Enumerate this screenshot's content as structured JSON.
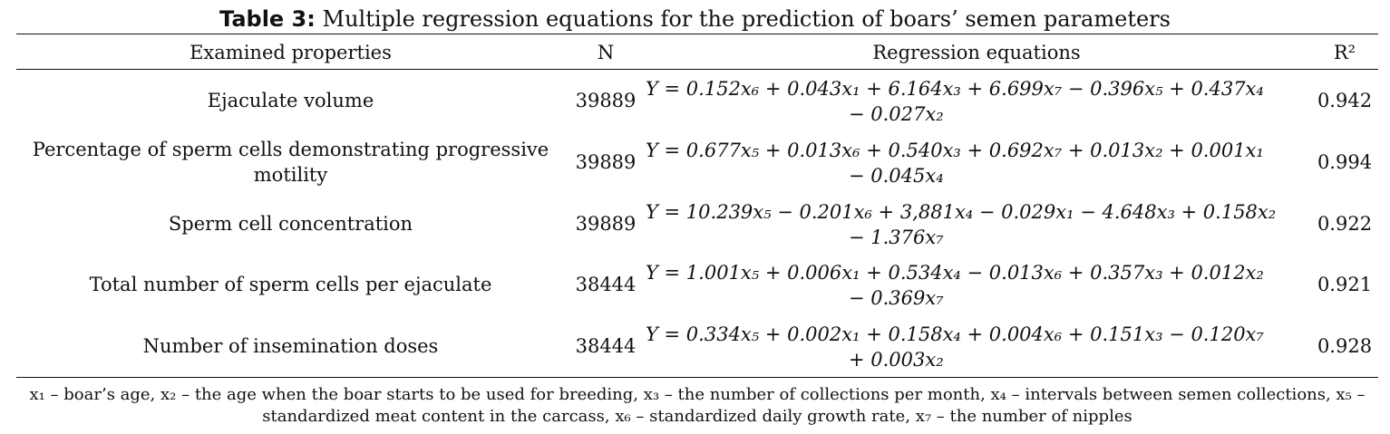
{
  "table": {
    "title_bold": "Table 3:",
    "title_rest": "Multiple regression equations for the prediction of boars’ semen parameters",
    "headers": {
      "property": "Examined properties",
      "n": "N",
      "equation": "Regression equations",
      "r2": "R²"
    },
    "rows": [
      {
        "property": "Ejaculate volume",
        "n": "39889",
        "eq_line1": "Y = 0.152x₆ + 0.043x₁ + 6.164x₃ + 6.699x₇ − 0.396x₅ + 0.437x₄",
        "eq_line2": "− 0.027x₂",
        "r2": "0.942"
      },
      {
        "property": "Percentage of sperm cells demonstrating progressive motility",
        "n": "39889",
        "eq_line1": "Y =  0.677x₅ + 0.013x₆ + 0.540x₃ + 0.692x₇ + 0.013x₂ + 0.001x₁",
        "eq_line2": "− 0.045x₄",
        "r2": "0.994"
      },
      {
        "property": "Sperm cell concentration",
        "n": "39889",
        "eq_line1": "Y = 10.239x₅ − 0.201x₆ + 3,881x₄ − 0.029x₁ − 4.648x₃ + 0.158x₂",
        "eq_line2": "− 1.376x₇",
        "r2": "0.922"
      },
      {
        "property": "Total number of sperm cells per ejaculate",
        "n": "38444",
        "eq_line1": "Y = 1.001x₅ + 0.006x₁ + 0.534x₄ − 0.013x₆ + 0.357x₃ + 0.012x₂",
        "eq_line2": "− 0.369x₇",
        "r2": "0.921"
      },
      {
        "property": "Number of insemination doses",
        "n": "38444",
        "eq_line1": "Y = 0.334x₅ + 0.002x₁ + 0.158x₄ + 0.004x₆ + 0.151x₃ − 0.120x₇",
        "eq_line2": "+ 0.003x₂",
        "r2": "0.928"
      }
    ],
    "footnote": "x₁ – boar’s age, x₂ – the age when the boar starts to be used for breeding, x₃ – the number of collections per month, x₄ – intervals between semen collections, x₅ – standardized meat content in the carcass, x₆ – standardized daily growth rate, x₇ – the number of nipples"
  }
}
